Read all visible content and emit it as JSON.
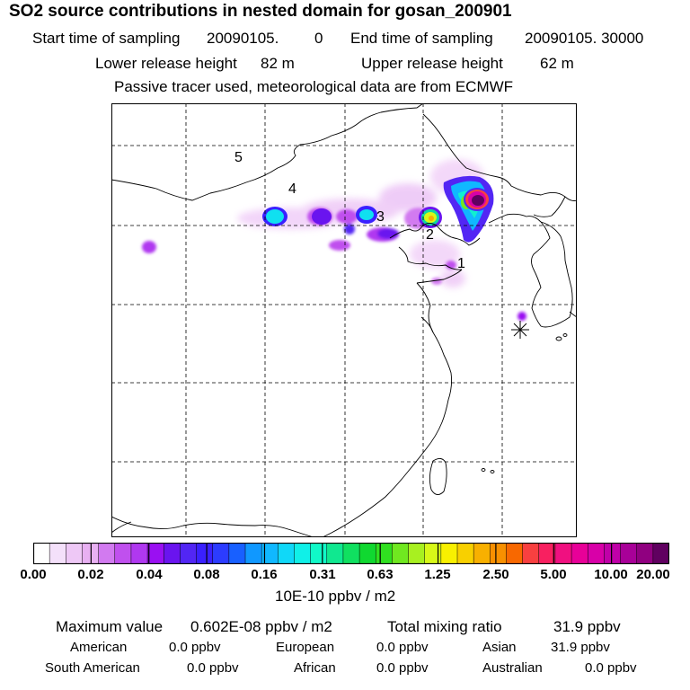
{
  "header": {
    "title": "SO2 source contributions in nested domain for gosan_200901",
    "start_label": "Start time of sampling",
    "start_value": "20090105.",
    "start_hour": "0",
    "end_label": "End time of sampling",
    "end_value": "20090105. 30000",
    "lower_label": "Lower release height",
    "lower_value": "82 m",
    "upper_label": "Upper release height",
    "upper_value": "62 m",
    "note": "Passive tracer used, meteorological data are from ECMWF"
  },
  "map": {
    "region_labels": [
      "5",
      "4",
      "3",
      "2",
      "1"
    ],
    "receptor_marker": "receptor-asterisk"
  },
  "colorbar": {
    "tick_labels": [
      "0.00",
      "0.02",
      "0.04",
      "0.08",
      "0.16",
      "0.31",
      "0.63",
      "1.25",
      "2.50",
      "5.00",
      "10.00",
      "20.00"
    ],
    "colors": [
      "#ffffff",
      "#f4e0fa",
      "#eec8f6",
      "#e8b0f2",
      "#d27af0",
      "#c050ee",
      "#b038f0",
      "#9a10f2",
      "#6a14ef",
      "#5226f4",
      "#3a20ff",
      "#2c3cff",
      "#1860ff",
      "#1098ff",
      "#10b8ff",
      "#10d8f8",
      "#10f0e8",
      "#10f8c8",
      "#10e890",
      "#10e060",
      "#10d830",
      "#30e020",
      "#70e820",
      "#a8f020",
      "#d8f818",
      "#f8f000",
      "#f8d000",
      "#f8b000",
      "#f89000",
      "#f86800",
      "#f84040",
      "#f82060",
      "#f01080",
      "#e80098",
      "#d800a8",
      "#c000a8",
      "#a80098",
      "#900080",
      "#600060"
    ],
    "unit": "10E-10 ppbv / m2"
  },
  "footer": {
    "max_label": "Maximum value",
    "max_value": "0.602E-08 ppbv / m2",
    "total_label": "Total mixing ratio",
    "total_value": "31.9 ppbv",
    "american_label": "American",
    "american_value": "0.0 ppbv",
    "european_label": "European",
    "european_value": "0.0 ppbv",
    "asian_label": "Asian",
    "asian_value": "31.9 ppbv",
    "south_american_label": "South American",
    "south_american_value": "0.0 ppbv",
    "african_label": "African",
    "african_value": "0.0 ppbv",
    "australian_label": "Australian",
    "australian_value": "0.0 ppbv"
  }
}
